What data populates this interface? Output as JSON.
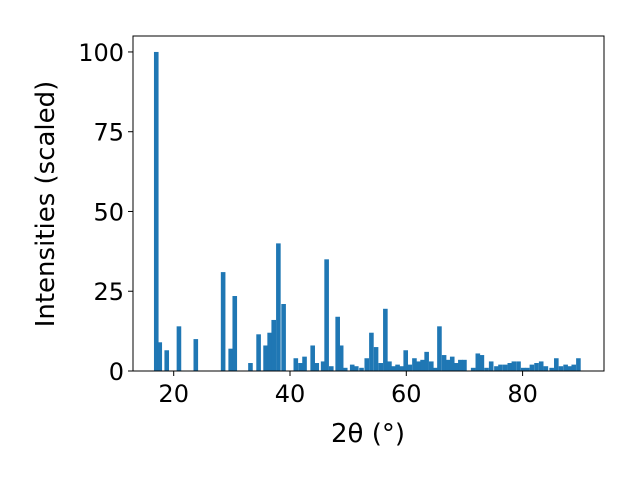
{
  "chart_data": {
    "type": "bar",
    "xlabel": "2θ (°)",
    "ylabel": "Intensities (scaled)",
    "xlim": [
      13,
      94
    ],
    "ylim": [
      0,
      105
    ],
    "grid": false,
    "bar_color": "#1f77b4",
    "x_ticks": [
      20,
      40,
      60,
      80
    ],
    "y_ticks": [
      0,
      25,
      50,
      75,
      100
    ],
    "x": [
      17.0,
      17.6,
      18.8,
      20.9,
      23.8,
      28.5,
      29.8,
      30.5,
      33.2,
      34.6,
      35.8,
      36.5,
      37.2,
      38.0,
      38.9,
      41.0,
      41.8,
      42.5,
      43.9,
      44.6,
      45.7,
      46.3,
      47.1,
      48.2,
      48.8,
      49.5,
      50.7,
      51.4,
      52.3,
      53.2,
      54.0,
      54.8,
      55.6,
      56.4,
      57.1,
      57.8,
      58.5,
      59.2,
      59.9,
      60.6,
      61.4,
      62.1,
      62.8,
      63.5,
      64.3,
      65.0,
      65.7,
      66.5,
      67.2,
      67.9,
      68.6,
      69.3,
      70.0,
      71.5,
      72.3,
      73.0,
      73.8,
      74.6,
      75.5,
      76.2,
      77.0,
      77.8,
      78.5,
      79.3,
      80.1,
      80.8,
      81.6,
      82.4,
      83.2,
      84.0,
      85.0,
      85.8,
      86.6,
      87.4,
      88.1,
      88.8,
      89.6
    ],
    "values": [
      100,
      9,
      6.5,
      14,
      10,
      31,
      7,
      23.5,
      2.5,
      11.5,
      8,
      12,
      16,
      40,
      21,
      4,
      2.5,
      4.5,
      8,
      2.5,
      3,
      35,
      1.5,
      17,
      8,
      1,
      2,
      1.5,
      1,
      4,
      12,
      7.5,
      2.5,
      19.5,
      3,
      1.5,
      2,
      1.5,
      6.5,
      2,
      4,
      3,
      3.5,
      6,
      3,
      1,
      14,
      5,
      3.5,
      4.5,
      2.5,
      3.5,
      3.5,
      1,
      5.5,
      5,
      1,
      3,
      1.5,
      2,
      2,
      2.5,
      3,
      3,
      1,
      1,
      2,
      2.5,
      3,
      1.5,
      1,
      4,
      1.5,
      2,
      1.5,
      2,
      4
    ]
  }
}
